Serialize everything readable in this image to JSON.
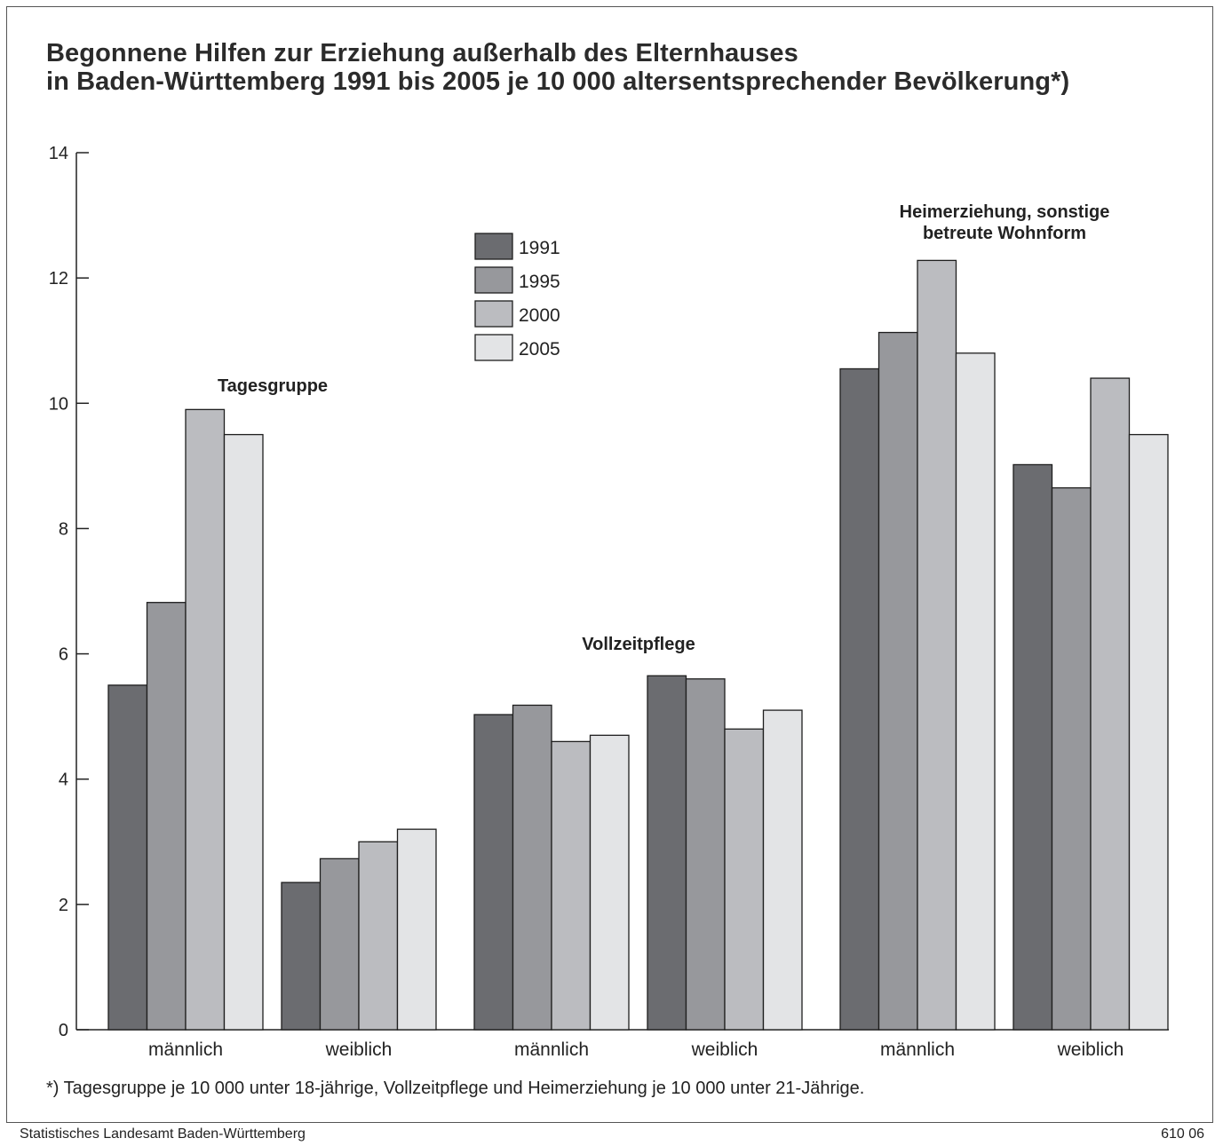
{
  "title_lines": [
    "Begonnene Hilfen zur Erziehung außerhalb des Elternhauses",
    "in Baden-Württemberg 1991 bis 2005 je 10 000 altersentsprechender Bevölkerung*)"
  ],
  "footnote": "*) Tagesgruppe je 10 000 unter 18-jährige, Vollzeitpflege und Heimerziehung je 10 000 unter 21-Jährige.",
  "source": "Statistisches Landesamt Baden-Württemberg",
  "code": "610 06",
  "colors": {
    "1991": "#6b6c70",
    "1995": "#97989c",
    "2000": "#bbbcc0",
    "2005": "#e3e4e6",
    "axis": "#222222"
  },
  "chart_data": {
    "type": "bar",
    "ylim": [
      0,
      14
    ],
    "yticks": [
      0,
      2,
      4,
      6,
      8,
      10,
      12,
      14
    ],
    "legend_position": "top-center",
    "categories": [
      "männlich",
      "weiblich",
      "männlich",
      "weiblich",
      "männlich",
      "weiblich"
    ],
    "groups": [
      {
        "label": [
          "Tagesgruppe"
        ],
        "categories": [
          0,
          1
        ]
      },
      {
        "label": [
          "Vollzeitpflege"
        ],
        "categories": [
          2,
          3
        ]
      },
      {
        "label": [
          "Heimerziehung, sonstige",
          "betreute Wohnform"
        ],
        "categories": [
          4,
          5
        ]
      }
    ],
    "series": [
      {
        "name": "1991",
        "values": [
          5.5,
          2.35,
          5.03,
          5.65,
          10.55,
          9.02
        ]
      },
      {
        "name": "1995",
        "values": [
          6.82,
          2.73,
          5.18,
          5.6,
          11.13,
          8.65
        ]
      },
      {
        "name": "2000",
        "values": [
          9.9,
          3.0,
          4.6,
          4.8,
          12.28,
          10.4
        ]
      },
      {
        "name": "2005",
        "values": [
          9.5,
          3.2,
          4.7,
          5.1,
          10.8,
          9.5
        ]
      }
    ]
  }
}
